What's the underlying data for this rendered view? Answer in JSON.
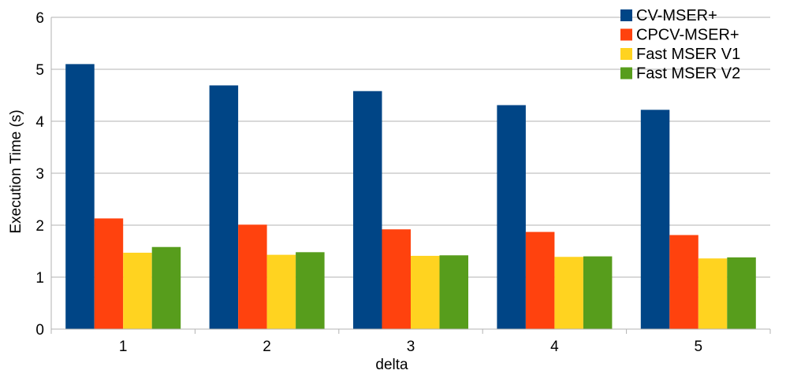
{
  "chart_data": {
    "type": "bar",
    "categories": [
      "1",
      "2",
      "3",
      "4",
      "5"
    ],
    "series": [
      {
        "name": "CV-MSER+",
        "color": "#004586",
        "values": [
          5.1,
          4.69,
          4.58,
          4.31,
          4.22
        ]
      },
      {
        "name": "CPCV-MSER+",
        "color": "#ff420e",
        "values": [
          2.13,
          2.01,
          1.92,
          1.87,
          1.81
        ]
      },
      {
        "name": "Fast MSER V1",
        "color": "#ffd320",
        "values": [
          1.47,
          1.43,
          1.41,
          1.39,
          1.36
        ]
      },
      {
        "name": "Fast MSER V2",
        "color": "#579d1c",
        "values": [
          1.58,
          1.48,
          1.42,
          1.4,
          1.38
        ]
      }
    ],
    "xlabel": "delta",
    "ylabel": "Execution Time (s)",
    "ylim": [
      0,
      6
    ],
    "yticks": [
      0,
      1,
      2,
      3,
      4,
      5,
      6
    ],
    "grid": true,
    "legend": "top-right"
  }
}
